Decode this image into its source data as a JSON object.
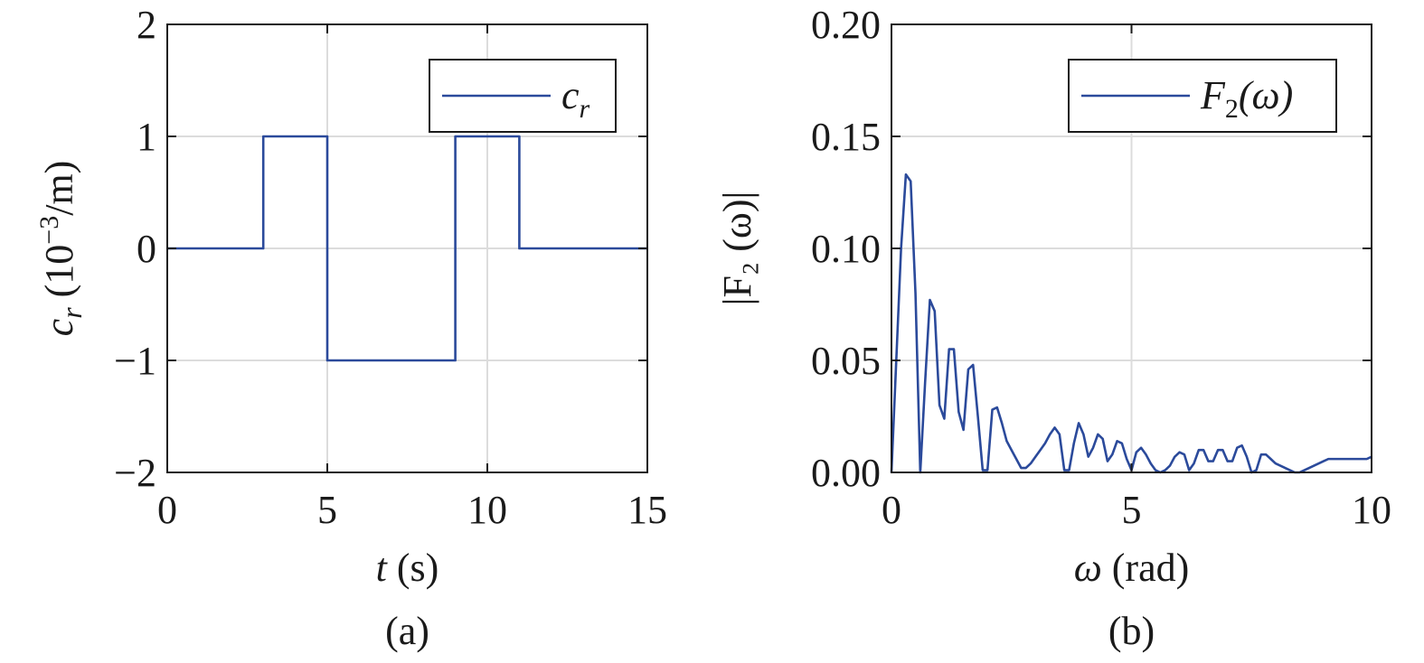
{
  "colors": {
    "line": "#2b4a9b",
    "grid": "#dcdcdc",
    "axis": "#1a1a1a",
    "background": "#ffffff"
  },
  "chart_data": [
    {
      "type": "line",
      "panel_label": "(a)",
      "xlabel": {
        "var": "t",
        "unit": " (s)"
      },
      "ylabel": {
        "var": "c",
        "sub": "r",
        "unit": " (10",
        "exp": "−3",
        "unit2": "/m)"
      },
      "xlim": [
        0,
        15
      ],
      "ylim": [
        -2,
        2
      ],
      "xticks": [
        0,
        5,
        10,
        15
      ],
      "xticklabels": [
        "0",
        "5",
        "10",
        "15"
      ],
      "yticks": [
        -2,
        -1,
        0,
        1,
        2
      ],
      "yticklabels": [
        "−2",
        "−1",
        "0",
        "1",
        "2"
      ],
      "grid": true,
      "legend": {
        "position": "top-right",
        "entries": [
          {
            "var": "c",
            "sub": "r",
            "suffix": ""
          }
        ]
      },
      "series": [
        {
          "name": "c_r",
          "x": [
            0,
            3,
            3,
            5,
            5,
            9,
            9,
            11,
            11,
            15
          ],
          "y": [
            0,
            0,
            1,
            1,
            -1,
            -1,
            1,
            1,
            0,
            0
          ]
        }
      ]
    },
    {
      "type": "line",
      "panel_label": "(b)",
      "xlabel": {
        "var": "ω",
        "unit": " (rad)"
      },
      "ylabel": {
        "text": "|F₂ (ω)|"
      },
      "xlim": [
        0,
        10
      ],
      "ylim": [
        0,
        0.2
      ],
      "xticks": [
        0,
        5,
        10
      ],
      "xticklabels": [
        "0",
        "5",
        "10"
      ],
      "yticks": [
        0,
        0.05,
        0.1,
        0.15,
        0.2
      ],
      "yticklabels": [
        "0.00",
        "0.05",
        "0.10",
        "0.15",
        "0.20"
      ],
      "grid": true,
      "legend": {
        "position": "top-right",
        "entries": [
          {
            "var": "F",
            "sub": "2",
            "suffix": "(ω)"
          }
        ]
      },
      "series": [
        {
          "name": "F2(ω)",
          "x": [
            0,
            0.1,
            0.2,
            0.3,
            0.4,
            0.5,
            0.6,
            0.7,
            0.8,
            0.9,
            1.0,
            1.1,
            1.2,
            1.3,
            1.4,
            1.5,
            1.6,
            1.7,
            1.8,
            1.9,
            2.0,
            2.1,
            2.2,
            2.3,
            2.4,
            2.5,
            2.6,
            2.7,
            2.8,
            2.9,
            3.0,
            3.1,
            3.2,
            3.3,
            3.4,
            3.5,
            3.6,
            3.7,
            3.8,
            3.9,
            4.0,
            4.1,
            4.2,
            4.3,
            4.4,
            4.5,
            4.6,
            4.7,
            4.8,
            4.9,
            5.0,
            5.1,
            5.2,
            5.3,
            5.4,
            5.5,
            5.6,
            5.7,
            5.8,
            5.9,
            6.0,
            6.1,
            6.2,
            6.3,
            6.4,
            6.5,
            6.6,
            6.7,
            6.8,
            6.9,
            7.0,
            7.1,
            7.2,
            7.3,
            7.4,
            7.5,
            7.6,
            7.7,
            7.8,
            7.9,
            8.0,
            8.1,
            8.2,
            8.3,
            8.4,
            8.5,
            8.6,
            8.7,
            8.8,
            8.9,
            9.0,
            9.1,
            9.2,
            9.3,
            9.4,
            9.5,
            9.6,
            9.7,
            9.8,
            9.9,
            10.0
          ],
          "y": [
            0.0,
            0.05,
            0.1,
            0.133,
            0.13,
            0.08,
            0.0,
            0.04,
            0.077,
            0.072,
            0.03,
            0.024,
            0.055,
            0.055,
            0.027,
            0.019,
            0.046,
            0.048,
            0.025,
            0.001,
            0.001,
            0.028,
            0.029,
            0.022,
            0.014,
            0.01,
            0.006,
            0.002,
            0.002,
            0.004,
            0.007,
            0.01,
            0.013,
            0.017,
            0.02,
            0.017,
            0.001,
            0.001,
            0.013,
            0.022,
            0.017,
            0.007,
            0.011,
            0.017,
            0.015,
            0.005,
            0.008,
            0.014,
            0.013,
            0.006,
            0.001,
            0.009,
            0.011,
            0.008,
            0.004,
            0.001,
            0.0,
            0.001,
            0.003,
            0.007,
            0.009,
            0.008,
            0.001,
            0.004,
            0.01,
            0.01,
            0.005,
            0.005,
            0.01,
            0.01,
            0.005,
            0.005,
            0.011,
            0.012,
            0.007,
            0.0,
            0.001,
            0.008,
            0.008,
            0.006,
            0.004,
            0.003,
            0.002,
            0.001,
            0.0,
            0.0,
            0.001,
            0.002,
            0.003,
            0.004,
            0.005,
            0.006,
            0.006,
            0.006,
            0.006,
            0.006,
            0.006,
            0.006,
            0.006,
            0.006,
            0.007
          ]
        }
      ]
    }
  ]
}
